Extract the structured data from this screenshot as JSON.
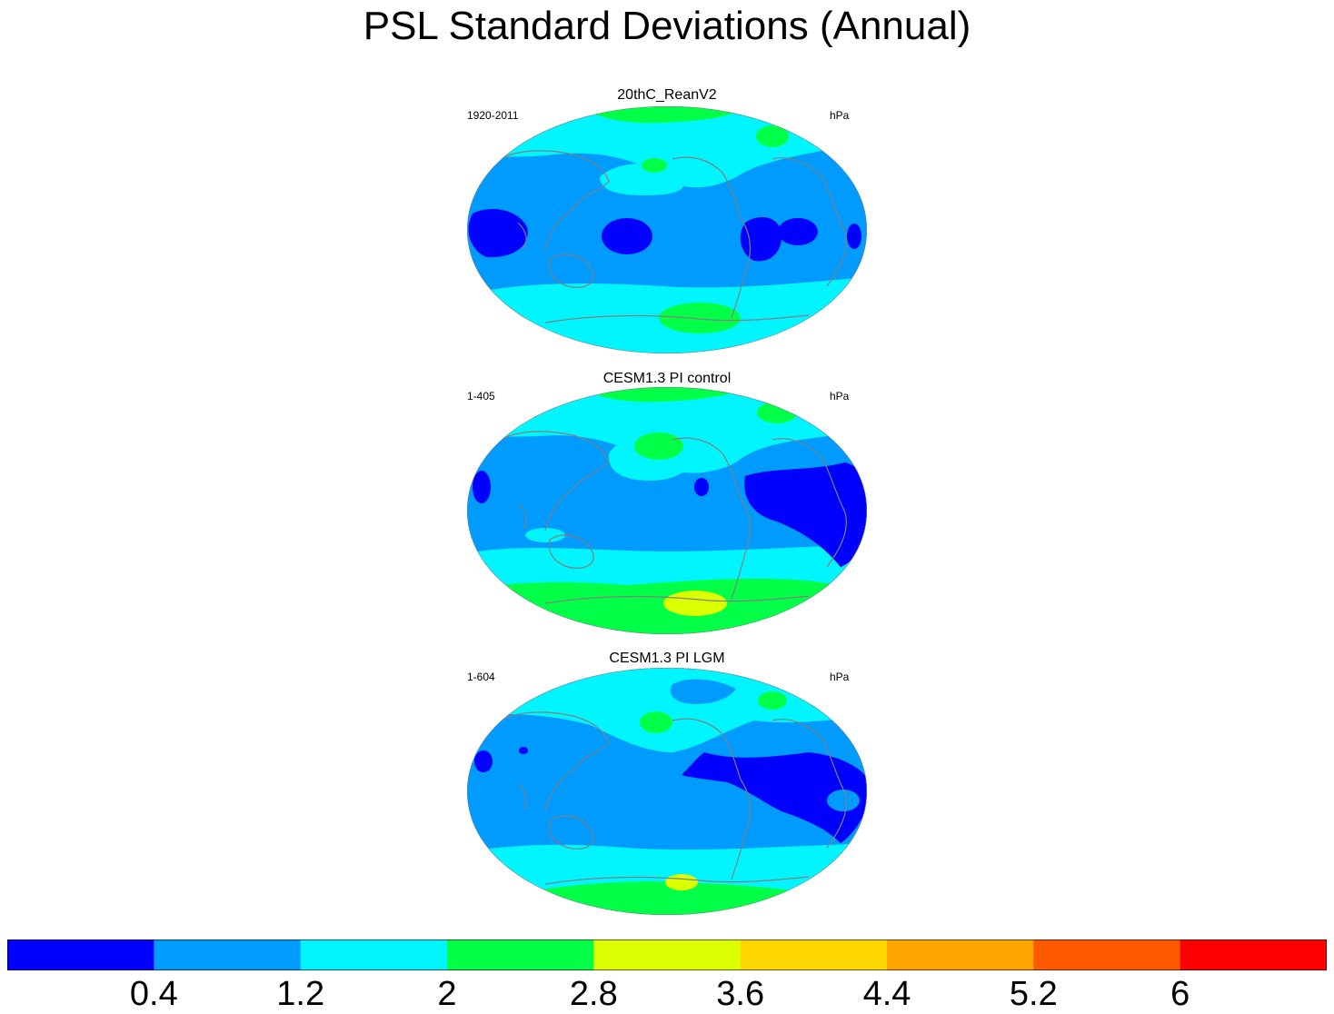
{
  "title": "PSL Standard Deviations (Annual)",
  "panels": [
    {
      "title": "20thC_ReanV2",
      "left_label": "1920-2011",
      "right_label": "hPa"
    },
    {
      "title": "CESM1.3 PI control",
      "left_label": "1-405",
      "right_label": "hPa"
    },
    {
      "title": "CESM1.3 PI LGM",
      "left_label": "1-604",
      "right_label": "hPa"
    }
  ],
  "colorbar": {
    "labels": [
      "0.4",
      "1.2",
      "2",
      "2.8",
      "3.6",
      "4.4",
      "5.2",
      "6"
    ],
    "colors": [
      "#0000ff",
      "#009bff",
      "#00f5ff",
      "#00ff46",
      "#dcff00",
      "#ffd700",
      "#ffa500",
      "#ff5a00",
      "#ff0000"
    ]
  },
  "map_colors": {
    "blue": "#0000ff",
    "lightblue": "#009bff",
    "cyan": "#00f5ff",
    "green": "#00ff46",
    "yellow": "#dcff00",
    "coast": "#808080"
  }
}
